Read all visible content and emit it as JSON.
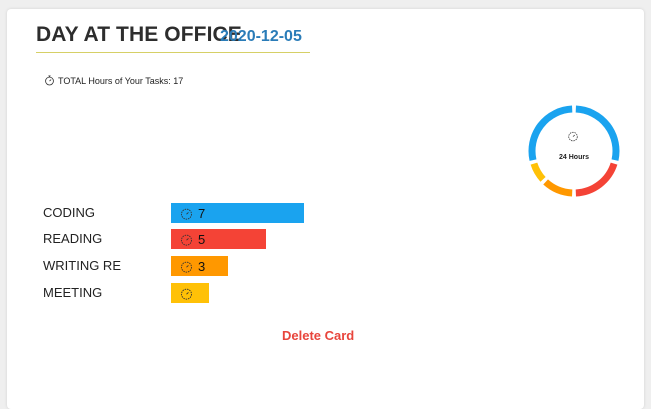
{
  "card": {
    "title": "DAY AT THE OFFICE",
    "date": "2020-12-05",
    "total_text": "TOTAL Hours of Your Tasks: 17",
    "donut_label": "24 Hours",
    "delete_label": "Delete Card"
  },
  "tasks": [
    {
      "name": "CODING",
      "hours": 7,
      "value_label": "7",
      "color": "#1aa3ef"
    },
    {
      "name": "READING",
      "hours": 5,
      "value_label": "5",
      "color": "#f44336"
    },
    {
      "name": "WRITING RE",
      "hours": 3,
      "value_label": "3",
      "color": "#ff9800"
    },
    {
      "name": "MEETING",
      "hours": 2,
      "value_label": "",
      "color": "#ffc107"
    }
  ],
  "donut": {
    "total_hours": 24,
    "segments": [
      {
        "hours": 7,
        "color": "#1aa3ef"
      },
      {
        "hours": 5,
        "color": "#f44336"
      },
      {
        "hours": 3,
        "color": "#ff9800"
      },
      {
        "hours": 2,
        "color": "#ffc107"
      },
      {
        "hours": 7,
        "color": "#1aa3ef"
      }
    ]
  },
  "colors": {
    "title": "#2d2d2d",
    "date": "#2a7cb8",
    "underline": "#d6d066",
    "delete": "#e8453c"
  },
  "icons": {
    "timer": "stopwatch-icon"
  }
}
